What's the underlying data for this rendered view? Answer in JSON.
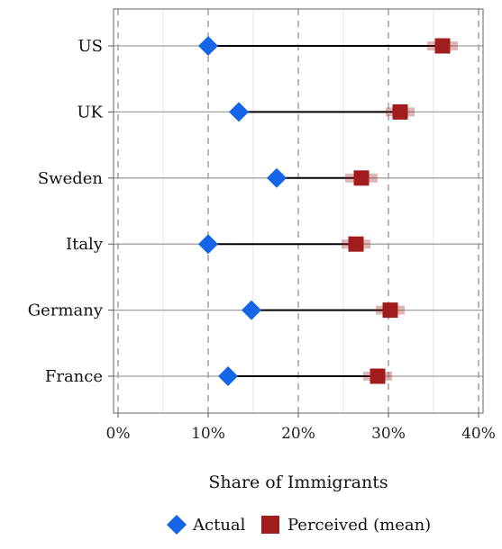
{
  "chart_data": {
    "type": "dumbbell",
    "categories": [
      "US",
      "UK",
      "Sweden",
      "Italy",
      "Germany",
      "France"
    ],
    "series": [
      {
        "name": "Actual",
        "values": [
          10,
          13.4,
          17.6,
          10,
          14.8,
          12.2
        ],
        "color": "#1565e8",
        "marker": "diamond"
      },
      {
        "name": "Perceived (mean)",
        "values": [
          36,
          31.3,
          27,
          26.4,
          30.2,
          28.8
        ],
        "color": "#a11d1d",
        "marker": "square",
        "error": [
          0.9,
          0.8,
          1.0,
          0.8,
          0.8,
          0.8
        ]
      }
    ],
    "xlabel": "Share of Immigrants",
    "ylabel": "",
    "xlim": [
      -0.5,
      40.5
    ],
    "xticks": [
      0,
      10,
      20,
      30,
      40
    ],
    "xtick_labels": [
      "0%",
      "10%",
      "20%",
      "30%",
      "40%"
    ],
    "minor_grid": [
      5,
      15,
      25,
      35
    ],
    "grid": true,
    "legend_position": "bottom"
  }
}
